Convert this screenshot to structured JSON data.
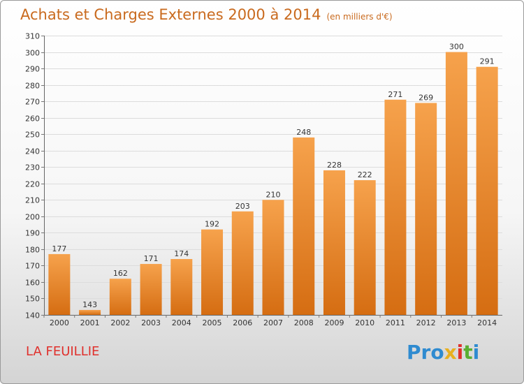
{
  "header": {
    "title": "Achats et Charges Externes 2000 à 2014",
    "unit": "(en milliers d'€)"
  },
  "footer": {
    "town": "LA FEUILLIE",
    "brand": [
      "P",
      "r",
      "o",
      "x",
      "i",
      "t",
      "i"
    ]
  },
  "colors": {
    "bar_light": "#f6a24c",
    "bar_dark": "#d56d12",
    "title": "#c96a1e",
    "town": "#e0302c",
    "brand": [
      "#2f8bd0",
      "#2f8bd0",
      "#2f8bd0",
      "#e8b020",
      "#e0302c",
      "#5aae32",
      "#2f8bd0"
    ]
  },
  "chart_data": {
    "type": "bar",
    "categories": [
      "2000",
      "2001",
      "2002",
      "2003",
      "2004",
      "2005",
      "2006",
      "2007",
      "2008",
      "2009",
      "2010",
      "2011",
      "2012",
      "2013",
      "2014"
    ],
    "values": [
      177,
      143,
      162,
      171,
      174,
      192,
      203,
      210,
      248,
      228,
      222,
      271,
      269,
      300,
      291
    ],
    "title": "Achats et Charges Externes 2000 à 2014",
    "subtitle": "(en milliers d'€)",
    "ylim": [
      140,
      310
    ],
    "yticks": [
      140,
      150,
      160,
      170,
      180,
      190,
      200,
      210,
      220,
      230,
      240,
      250,
      260,
      270,
      280,
      290,
      300,
      310
    ],
    "grid": true,
    "legend": "none"
  }
}
